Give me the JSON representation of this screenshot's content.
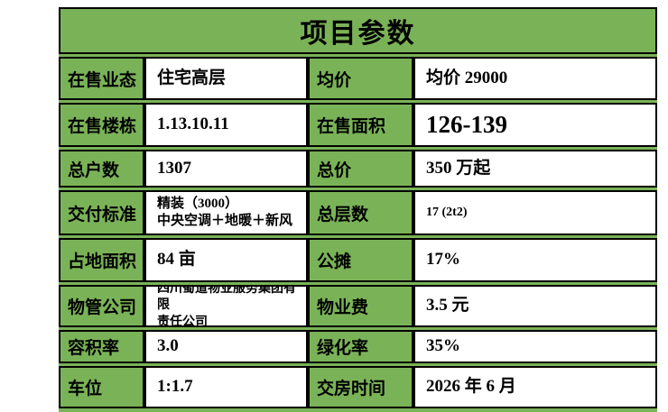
{
  "title": "项目参数",
  "colors": {
    "table_green": "#7ab357",
    "border_black": "#000000",
    "cell_white": "#ffffff",
    "text_black": "#000000"
  },
  "rows": [
    {
      "label1": "在售业态",
      "value1": "住宅高层",
      "label2": "均价",
      "value2": "均价 29000"
    },
    {
      "label1": "在售楼栋",
      "value1": "1.13.10.11",
      "label2": "在售面积",
      "value2": "126-139"
    },
    {
      "label1": "总户数",
      "value1": "1307",
      "label2": "总价",
      "value2": "350 万起"
    },
    {
      "label1": "交付标准",
      "value1": "精装（3000）\n中央空调＋地暖＋新风",
      "label2": "总层数",
      "value2": "17 (2t2)"
    },
    {
      "label1": "占地面积",
      "value1": "84 亩",
      "label2": "公摊",
      "value2": "17%"
    },
    {
      "label1": "物管公司",
      "value1": "四川蜀道物业服务集团有限\n责任公司",
      "label2": "物业费",
      "value2": "3.5 元"
    },
    {
      "label1": "容积率",
      "value1": "3.0",
      "label2": "绿化率",
      "value2": "35%"
    },
    {
      "label1": "车位",
      "value1": "1:1.7",
      "label2": "交房时间",
      "value2": "2026 年 6 月"
    }
  ]
}
